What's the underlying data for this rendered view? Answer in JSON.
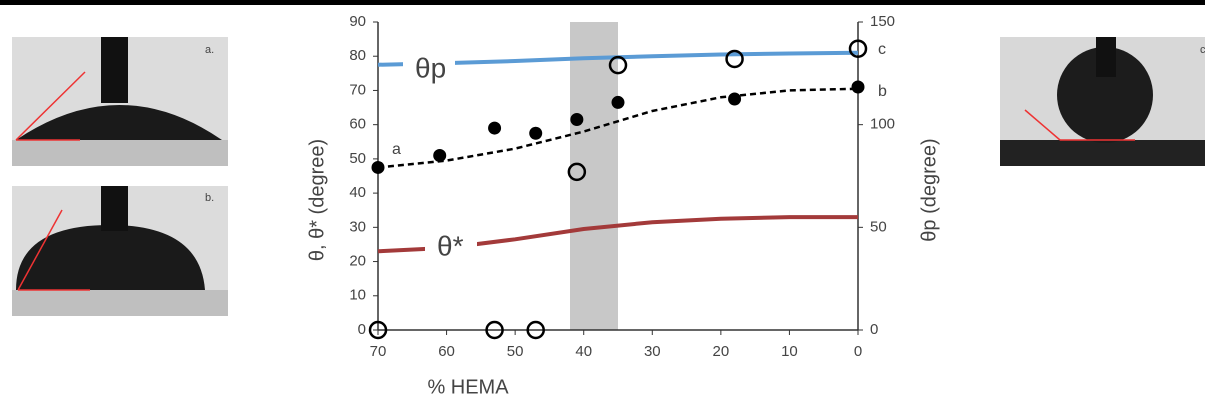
{
  "insets": [
    {
      "label": "a."
    },
    {
      "label": "b."
    },
    {
      "label": "c."
    }
  ],
  "chart_data": {
    "type": "line",
    "x_label": "% HEMA",
    "y_label": "θ, θ* (degree)",
    "y2_label": "θp (degree)",
    "annotations": [
      "θp",
      "θ*",
      "a",
      "b",
      "c"
    ],
    "xlim": [
      70,
      0
    ],
    "xticks": [
      70,
      60,
      50,
      40,
      30,
      20,
      10,
      0
    ],
    "ylim": [
      0,
      90
    ],
    "yticks": [
      0,
      10,
      20,
      30,
      40,
      50,
      60,
      70,
      80,
      90
    ],
    "y2lim": [
      0,
      150
    ],
    "y2ticks": [
      0,
      50,
      100,
      150
    ],
    "shaded_range": [
      42,
      35
    ],
    "shade_color": "#c8c8c8",
    "series": [
      {
        "style": "solid",
        "color": "#5b9bd5",
        "x": [
          70,
          60,
          50,
          40,
          30,
          20,
          10,
          0
        ],
        "values": [
          77.5,
          78,
          78.6,
          79.4,
          80,
          80.5,
          80.8,
          81
        ]
      },
      {
        "style": "solid",
        "color": "#a33a3a",
        "x": [
          70,
          60,
          50,
          40,
          30,
          20,
          10,
          0
        ],
        "values": [
          23,
          24,
          26.5,
          29.5,
          31.5,
          32.5,
          33,
          33
        ]
      },
      {
        "style": "dashed",
        "color": "#000000",
        "x": [
          70,
          60,
          50,
          40,
          30,
          20,
          10,
          0
        ],
        "values": [
          47.5,
          49.5,
          53,
          58,
          64,
          68,
          70,
          70.5
        ]
      },
      {
        "style": "filled-marker",
        "color": "#000000",
        "x": [
          70,
          61,
          53,
          47,
          41,
          35,
          18,
          0
        ],
        "values": [
          47.5,
          51,
          59,
          57.5,
          61.5,
          66.5,
          67.5,
          71
        ]
      },
      {
        "style": "open-marker",
        "color": "#000000",
        "axis": "y2",
        "x": [
          70,
          53,
          47,
          41,
          35,
          18,
          0
        ],
        "values": [
          0,
          0,
          0,
          77,
          129,
          132,
          137
        ]
      }
    ]
  }
}
